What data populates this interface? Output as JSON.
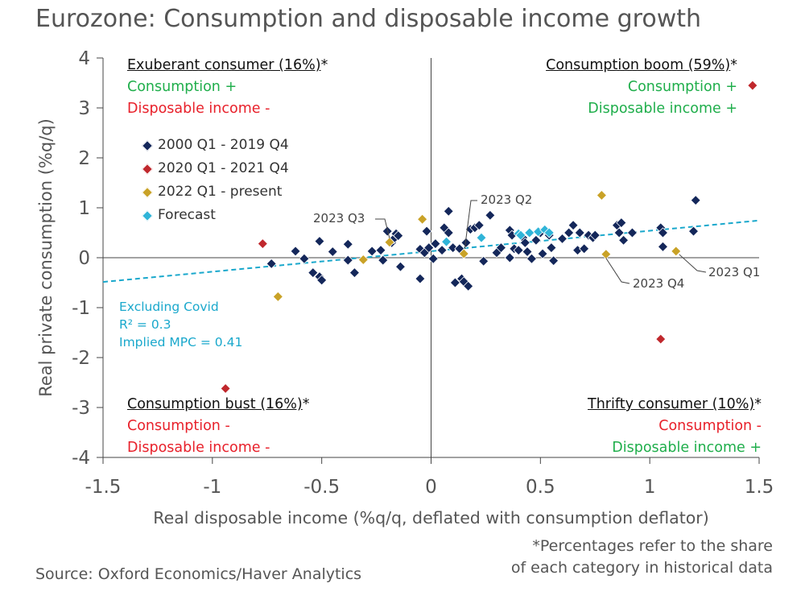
{
  "title": "Eurozone: Consumption and disposable income growth",
  "source": "Source: Oxford Economics/Haver Analytics",
  "footnote": [
    "*Percentages refer to the share",
    "of each category in historical data"
  ],
  "quadrants": {
    "top_left": {
      "title": "Exuberant consumer (16%)",
      "star": "*",
      "line1": "Consumption +",
      "line2": "Disposable income -"
    },
    "top_right": {
      "title": "Consumption boom (59%)",
      "star": "*",
      "line1": "Consumption +",
      "line2": "Disposable income +"
    },
    "bottom_left": {
      "title": "Consumption bust (16%)",
      "star": "*",
      "line1": "Consumption -",
      "line2": "Disposable income -"
    },
    "bottom_right": {
      "title": "Thrifty consumer (10%)",
      "star": "*",
      "line1": "Consumption -",
      "line2": "Disposable income +"
    }
  },
  "regression_note": [
    "Excluding Covid",
    "R² = 0.3",
    "Implied MPC = 0.41"
  ],
  "annotations": {
    "q3": "2023 Q3",
    "q2": "2023 Q2",
    "q4": "2023 Q4",
    "q1": "2023 Q1"
  },
  "colors": {
    "navy": "#14275a",
    "red": "#c0282d",
    "gold": "#c9a227",
    "cyan": "#2fb4d8",
    "trend": "#1aa8cc"
  },
  "chart_data": {
    "type": "scatter",
    "title": "Eurozone: Consumption and disposable income growth",
    "xlabel": "Real disposable income (%q/q, deflated with consumption deflator)",
    "ylabel": "Real private consumption (%q/q)",
    "xlim": [
      -1.5,
      1.5
    ],
    "ylim": [
      -4,
      4
    ],
    "xticks": [
      -1.5,
      -1,
      -0.5,
      0,
      0.5,
      1,
      1.5
    ],
    "yticks": [
      -4,
      -3,
      -2,
      -1,
      0,
      1,
      2,
      3,
      4
    ],
    "xtick_labels": [
      "-1.5",
      "-1",
      "-0.5",
      "0",
      "0.5",
      "1",
      "1.5"
    ],
    "ytick_labels": [
      "-4",
      "-3",
      "-2",
      "-1",
      "0",
      "1",
      "2",
      "3",
      "4"
    ],
    "grid": false,
    "trendline": {
      "name": "Excluding Covid",
      "slope": 0.41,
      "intercept": 0.13,
      "x_range": [
        -1.5,
        1.5
      ]
    },
    "series": [
      {
        "name": "2000 Q1 - 2019 Q4",
        "color": "#14275a",
        "points": [
          [
            -0.73,
            -0.12
          ],
          [
            -0.62,
            0.13
          ],
          [
            -0.58,
            -0.02
          ],
          [
            -0.54,
            -0.3
          ],
          [
            -0.51,
            0.33
          ],
          [
            -0.51,
            -0.38
          ],
          [
            -0.5,
            -0.45
          ],
          [
            -0.45,
            0.12
          ],
          [
            -0.38,
            0.27
          ],
          [
            -0.38,
            -0.05
          ],
          [
            -0.35,
            -0.3
          ],
          [
            -0.27,
            0.13
          ],
          [
            -0.23,
            0.15
          ],
          [
            -0.22,
            -0.05
          ],
          [
            -0.2,
            0.53
          ],
          [
            -0.18,
            0.3
          ],
          [
            -0.17,
            0.38
          ],
          [
            -0.16,
            0.48
          ],
          [
            -0.15,
            0.44
          ],
          [
            -0.14,
            -0.18
          ],
          [
            -0.05,
            0.17
          ],
          [
            -0.05,
            -0.42
          ],
          [
            -0.03,
            0.1
          ],
          [
            -0.02,
            0.53
          ],
          [
            -0.01,
            0.2
          ],
          [
            0.01,
            -0.02
          ],
          [
            0.02,
            0.28
          ],
          [
            0.05,
            0.15
          ],
          [
            0.06,
            0.6
          ],
          [
            0.08,
            0.93
          ],
          [
            0.08,
            0.5
          ],
          [
            0.1,
            0.2
          ],
          [
            0.11,
            -0.5
          ],
          [
            0.13,
            0.18
          ],
          [
            0.14,
            -0.42
          ],
          [
            0.15,
            -0.48
          ],
          [
            0.16,
            0.3
          ],
          [
            0.17,
            -0.57
          ],
          [
            0.18,
            0.57
          ],
          [
            0.2,
            0.6
          ],
          [
            0.22,
            0.65
          ],
          [
            0.24,
            -0.07
          ],
          [
            0.27,
            0.85
          ],
          [
            0.3,
            0.1
          ],
          [
            0.32,
            0.2
          ],
          [
            0.36,
            0.55
          ],
          [
            0.36,
            0.0
          ],
          [
            0.37,
            0.45
          ],
          [
            0.38,
            0.18
          ],
          [
            0.4,
            0.15
          ],
          [
            0.42,
            0.4
          ],
          [
            0.43,
            0.3
          ],
          [
            0.44,
            0.12
          ],
          [
            0.46,
            -0.02
          ],
          [
            0.48,
            0.35
          ],
          [
            0.5,
            0.5
          ],
          [
            0.51,
            0.08
          ],
          [
            0.54,
            0.45
          ],
          [
            0.55,
            0.2
          ],
          [
            0.56,
            -0.06
          ],
          [
            0.6,
            0.38
          ],
          [
            0.63,
            0.5
          ],
          [
            0.65,
            0.65
          ],
          [
            0.67,
            0.15
          ],
          [
            0.68,
            0.5
          ],
          [
            0.7,
            0.18
          ],
          [
            0.72,
            0.45
          ],
          [
            0.74,
            0.4
          ],
          [
            0.75,
            0.45
          ],
          [
            0.85,
            0.65
          ],
          [
            0.86,
            0.5
          ],
          [
            0.87,
            0.7
          ],
          [
            0.88,
            0.35
          ],
          [
            0.92,
            0.5
          ],
          [
            1.05,
            0.6
          ],
          [
            1.06,
            0.5
          ],
          [
            1.06,
            0.22
          ],
          [
            1.2,
            0.53
          ],
          [
            1.21,
            1.15
          ]
        ]
      },
      {
        "name": "2020 Q1 - 2021 Q4",
        "color": "#c0282d",
        "points": [
          [
            -0.77,
            0.28
          ],
          [
            -0.94,
            -2.62
          ],
          [
            1.05,
            -1.63
          ],
          [
            1.47,
            3.45
          ]
        ]
      },
      {
        "name": "2022 Q1 - present",
        "color": "#c9a227",
        "points": [
          [
            -0.7,
            -0.78
          ],
          [
            -0.31,
            -0.04
          ],
          [
            -0.19,
            0.31
          ],
          [
            -0.04,
            0.77
          ],
          [
            0.15,
            0.08
          ],
          [
            0.78,
            1.25
          ],
          [
            0.8,
            0.07
          ],
          [
            1.12,
            0.13
          ]
        ]
      },
      {
        "name": "Forecast",
        "color": "#2fb4d8",
        "points": [
          [
            0.07,
            0.32
          ],
          [
            0.23,
            0.4
          ],
          [
            0.4,
            0.48
          ],
          [
            0.41,
            0.45
          ],
          [
            0.45,
            0.5
          ],
          [
            0.49,
            0.52
          ],
          [
            0.52,
            0.56
          ],
          [
            0.54,
            0.5
          ]
        ]
      }
    ]
  }
}
